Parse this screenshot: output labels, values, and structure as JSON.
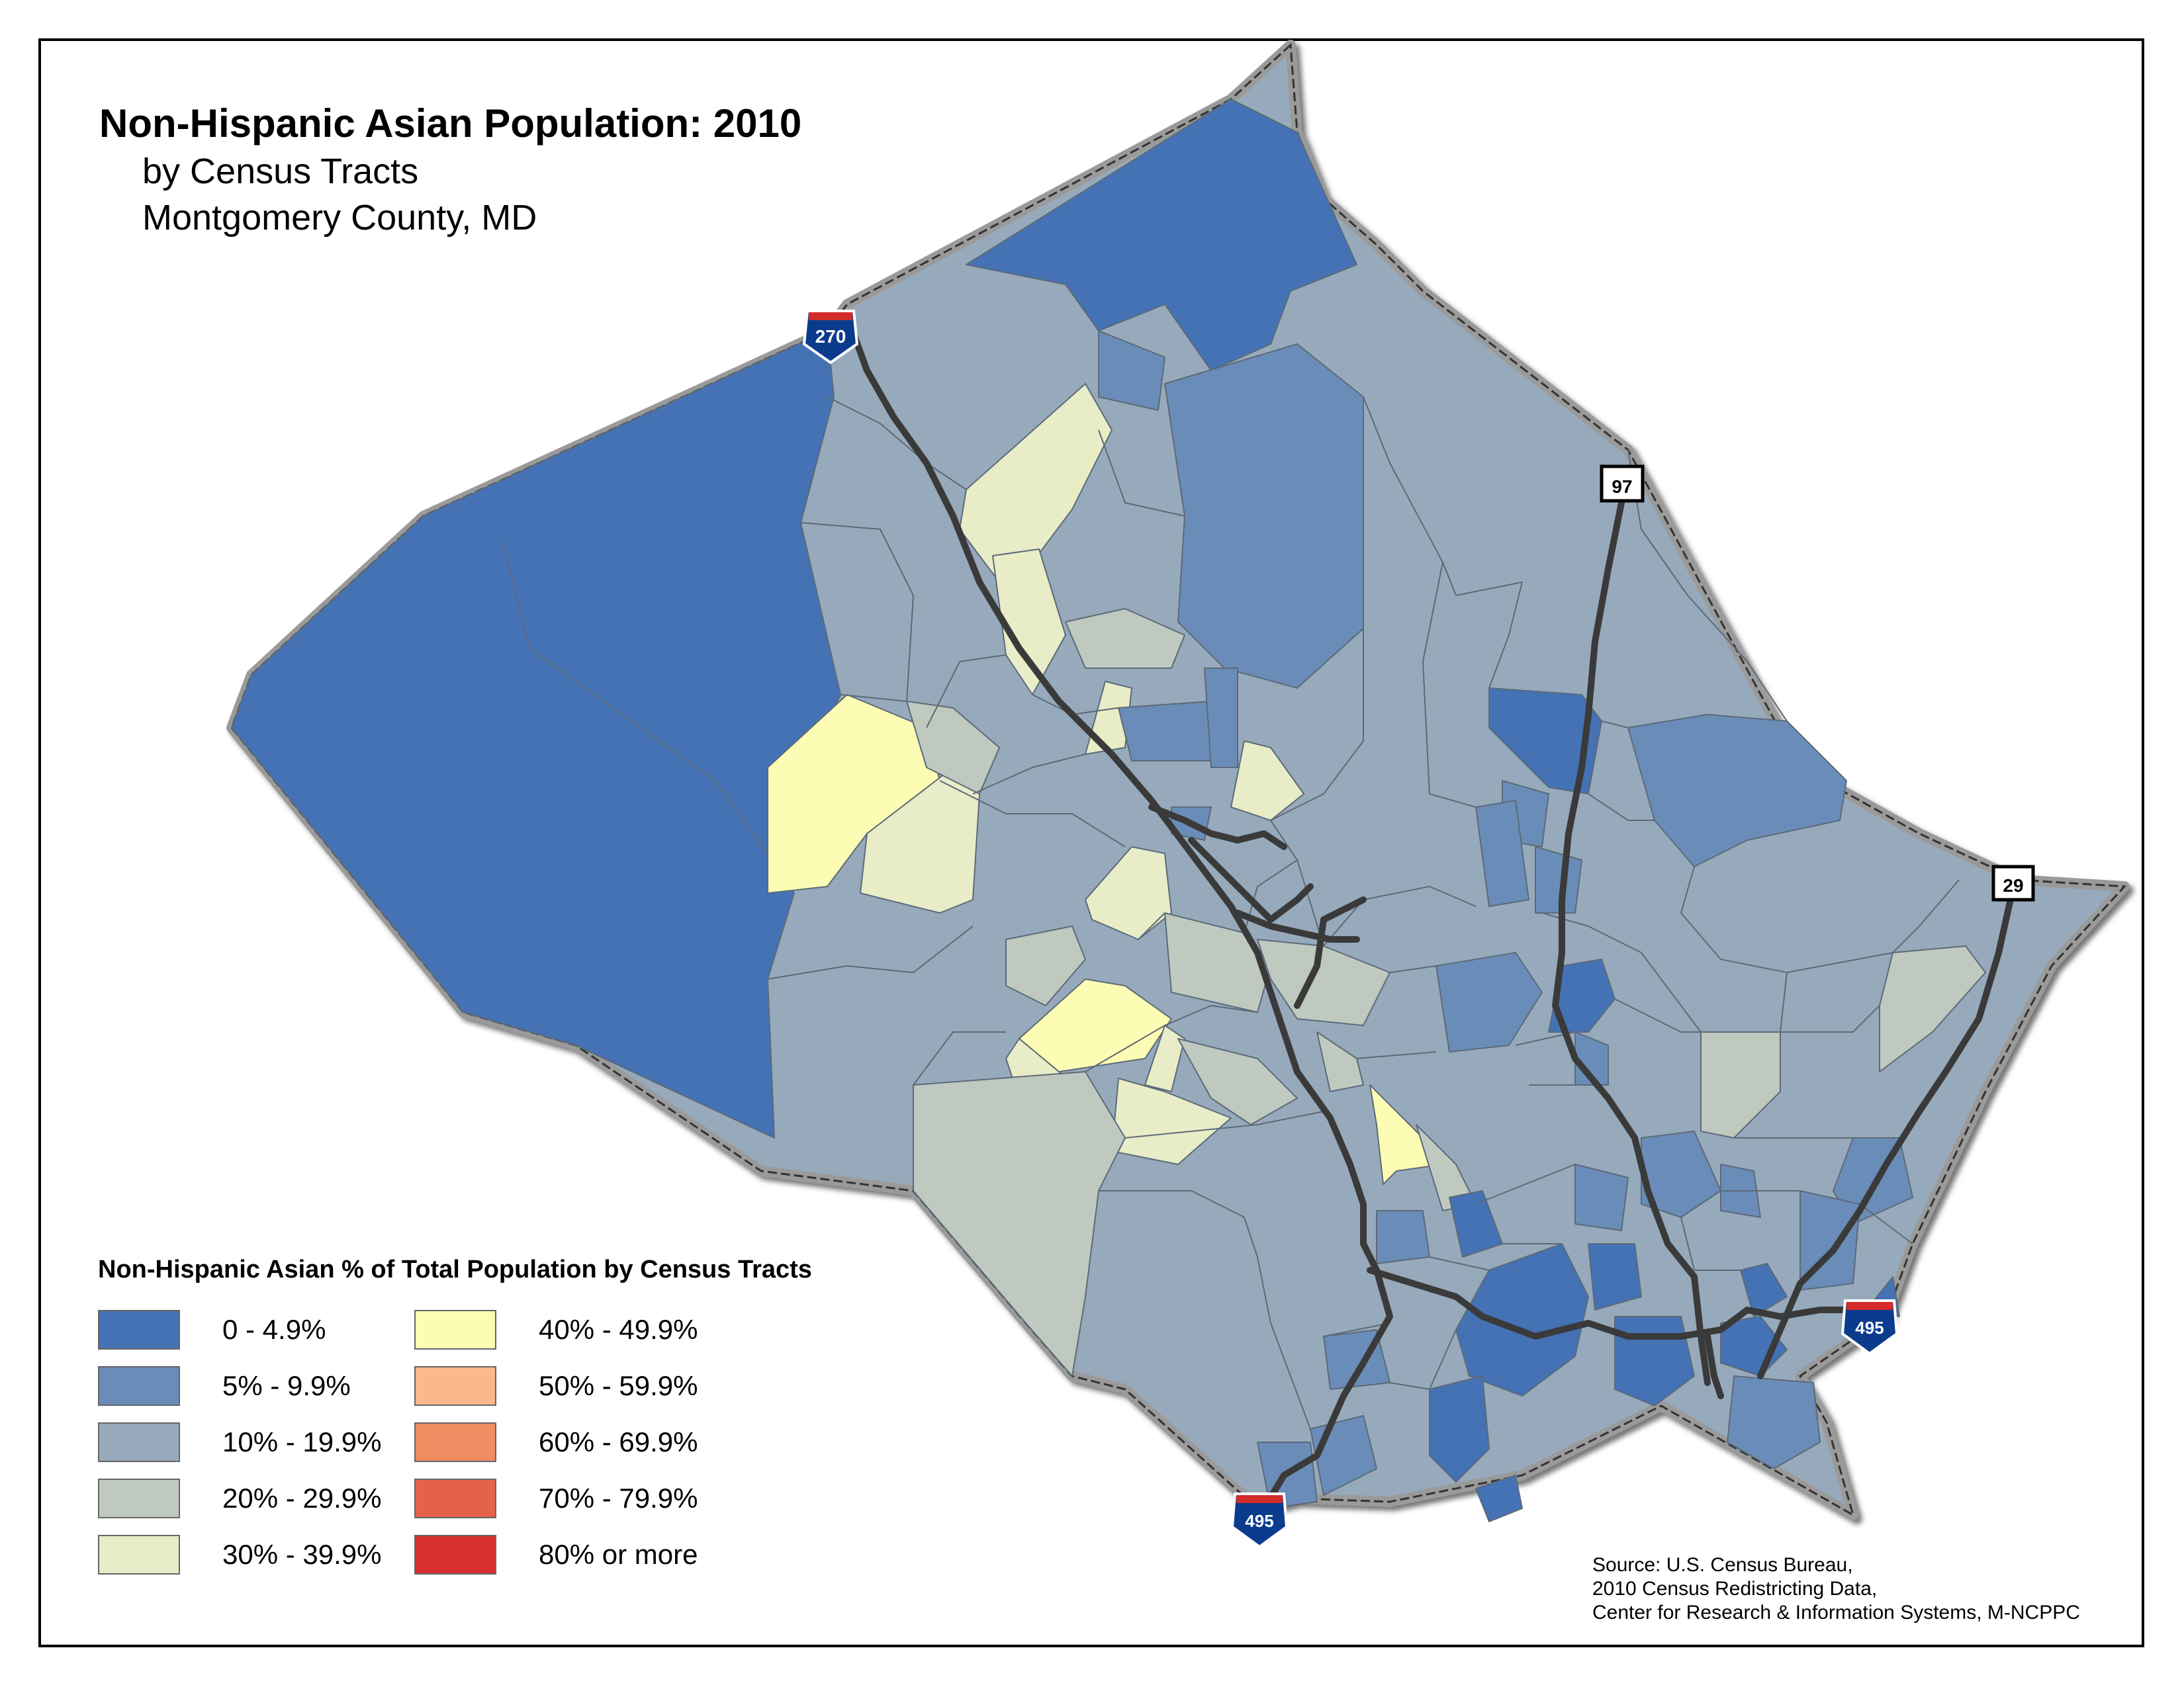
{
  "title": "Non-Hispanic Asian Population: 2010",
  "subtitle_1": "by Census Tracts",
  "subtitle_2": "Montgomery County, MD",
  "legend": {
    "title": "Non-Hispanic Asian % of Total Population by Census Tracts",
    "items": [
      {
        "label": "0 - 4.9%",
        "color": "#4472b5"
      },
      {
        "label": "5% - 9.9%",
        "color": "#6a8cb8"
      },
      {
        "label": "10% - 19.9%",
        "color": "#97aabb"
      },
      {
        "label": "20% - 29.9%",
        "color": "#bfc9c0"
      },
      {
        "label": "30% - 39.9%",
        "color": "#e8ecc7"
      },
      {
        "label": "40% - 49.9%",
        "color": "#fdfcb4"
      },
      {
        "label": "50% - 59.9%",
        "color": "#f9b98a"
      },
      {
        "label": "60% - 69.9%",
        "color": "#f08c62"
      },
      {
        "label": "70% - 79.9%",
        "color": "#e5624a"
      },
      {
        "label": "80% or more",
        "color": "#d7312e"
      }
    ]
  },
  "highways": [
    {
      "label": "270",
      "type": "interstate"
    },
    {
      "label": "97",
      "type": "state"
    },
    {
      "label": "29",
      "type": "state"
    },
    {
      "label": "495",
      "type": "interstate"
    },
    {
      "label": "495",
      "type": "interstate"
    }
  ],
  "source": {
    "line1": "Source: U.S. Census Bureau,",
    "line2": "2010 Census Redistricting Data,",
    "line3": "Center for Research & Information Systems, M-NCPPC"
  }
}
